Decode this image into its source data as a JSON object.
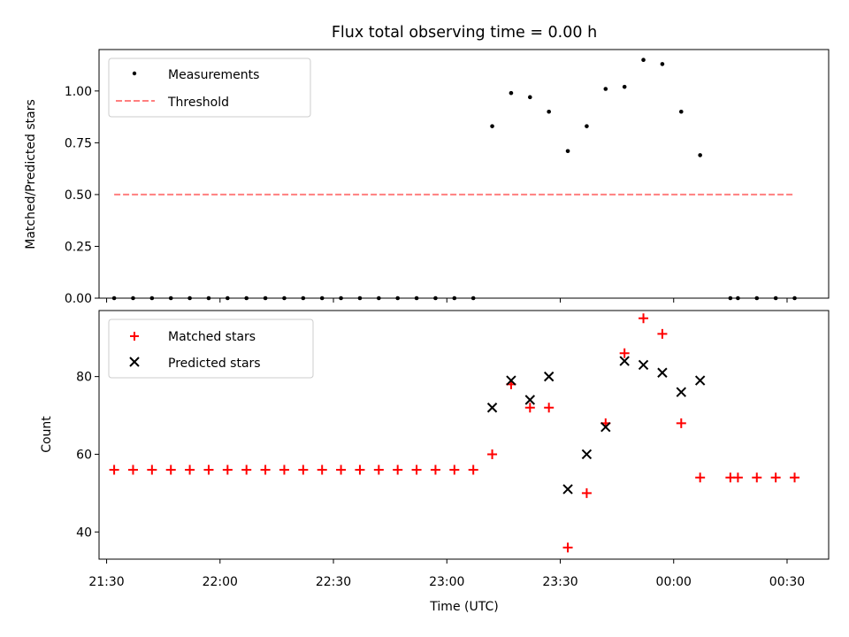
{
  "title": "Flux total observing time = 0.00 h",
  "xlabel": "Time (UTC)",
  "colors": {
    "measurement": "#000000",
    "threshold": "#ff7f7f",
    "matched": "#ff0000",
    "predicted": "#000000"
  },
  "chart_data": [
    {
      "type": "scatter",
      "ylabel": "Matched/Predicted stars",
      "xlim": [
        "21:28",
        "00:41"
      ],
      "ylim": [
        0,
        1.2
      ],
      "yticks": [
        "0.00",
        "0.25",
        "0.50",
        "0.75",
        "1.00"
      ],
      "legend": {
        "placement": "top-left",
        "entries": [
          {
            "label": "Measurements",
            "marker": "dot"
          },
          {
            "label": "Threshold",
            "marker": "dashed-line"
          }
        ]
      },
      "series": [
        {
          "name": "Measurements",
          "marker": "dot",
          "points": [
            [
              "21:32",
              0
            ],
            [
              "21:37",
              0
            ],
            [
              "21:42",
              0
            ],
            [
              "21:47",
              0
            ],
            [
              "21:52",
              0
            ],
            [
              "21:57",
              0
            ],
            [
              "22:02",
              0
            ],
            [
              "22:07",
              0
            ],
            [
              "22:12",
              0
            ],
            [
              "22:17",
              0
            ],
            [
              "22:22",
              0
            ],
            [
              "22:27",
              0
            ],
            [
              "22:32",
              0
            ],
            [
              "22:37",
              0
            ],
            [
              "22:42",
              0
            ],
            [
              "22:47",
              0
            ],
            [
              "22:52",
              0
            ],
            [
              "22:57",
              0
            ],
            [
              "23:02",
              0
            ],
            [
              "23:07",
              0
            ],
            [
              "23:12",
              0.83
            ],
            [
              "23:17",
              0.99
            ],
            [
              "23:22",
              0.97
            ],
            [
              "23:27",
              0.9
            ],
            [
              "23:32",
              0.71
            ],
            [
              "23:37",
              0.83
            ],
            [
              "23:42",
              1.01
            ],
            [
              "23:47",
              1.02
            ],
            [
              "23:52",
              1.15
            ],
            [
              "23:57",
              1.13
            ],
            [
              "00:02",
              0.9
            ],
            [
              "00:07",
              0.69
            ],
            [
              "00:15",
              0
            ],
            [
              "00:17",
              0
            ],
            [
              "00:22",
              0
            ],
            [
              "00:27",
              0
            ],
            [
              "00:32",
              0
            ]
          ]
        },
        {
          "name": "Threshold",
          "type": "line",
          "points": [
            [
              "21:32",
              0.5
            ],
            [
              "00:32",
              0.5
            ]
          ]
        }
      ]
    },
    {
      "type": "scatter",
      "ylabel": "Count",
      "xlim": [
        "21:28",
        "00:41"
      ],
      "ylim": [
        33,
        97
      ],
      "yticks": [
        "40",
        "60",
        "80"
      ],
      "xticks": [
        "21:30",
        "22:00",
        "22:30",
        "23:00",
        "23:30",
        "00:00",
        "00:30"
      ],
      "legend": {
        "placement": "top-left",
        "entries": [
          {
            "label": "Matched stars",
            "marker": "plus"
          },
          {
            "label": "Predicted stars",
            "marker": "x"
          }
        ]
      },
      "series": [
        {
          "name": "Matched stars",
          "marker": "plus",
          "points": [
            [
              "21:32",
              56
            ],
            [
              "21:37",
              56
            ],
            [
              "21:42",
              56
            ],
            [
              "21:47",
              56
            ],
            [
              "21:52",
              56
            ],
            [
              "21:57",
              56
            ],
            [
              "22:02",
              56
            ],
            [
              "22:07",
              56
            ],
            [
              "22:12",
              56
            ],
            [
              "22:17",
              56
            ],
            [
              "22:22",
              56
            ],
            [
              "22:27",
              56
            ],
            [
              "22:32",
              56
            ],
            [
              "22:37",
              56
            ],
            [
              "22:42",
              56
            ],
            [
              "22:47",
              56
            ],
            [
              "22:52",
              56
            ],
            [
              "22:57",
              56
            ],
            [
              "23:02",
              56
            ],
            [
              "23:07",
              56
            ],
            [
              "23:12",
              60
            ],
            [
              "23:17",
              78
            ],
            [
              "23:22",
              72
            ],
            [
              "23:27",
              72
            ],
            [
              "23:32",
              36
            ],
            [
              "23:37",
              50
            ],
            [
              "23:42",
              68
            ],
            [
              "23:47",
              86
            ],
            [
              "23:52",
              95
            ],
            [
              "23:57",
              91
            ],
            [
              "00:02",
              68
            ],
            [
              "00:07",
              54
            ],
            [
              "00:15",
              54
            ],
            [
              "00:17",
              54
            ],
            [
              "00:22",
              54
            ],
            [
              "00:27",
              54
            ],
            [
              "00:32",
              54
            ]
          ]
        },
        {
          "name": "Predicted stars",
          "marker": "x",
          "points": [
            [
              "23:12",
              72
            ],
            [
              "23:17",
              79
            ],
            [
              "23:22",
              74
            ],
            [
              "23:27",
              80
            ],
            [
              "23:32",
              51
            ],
            [
              "23:37",
              60
            ],
            [
              "23:42",
              67
            ],
            [
              "23:47",
              84
            ],
            [
              "23:52",
              83
            ],
            [
              "23:57",
              81
            ],
            [
              "00:02",
              76
            ],
            [
              "00:07",
              79
            ]
          ]
        }
      ]
    }
  ]
}
